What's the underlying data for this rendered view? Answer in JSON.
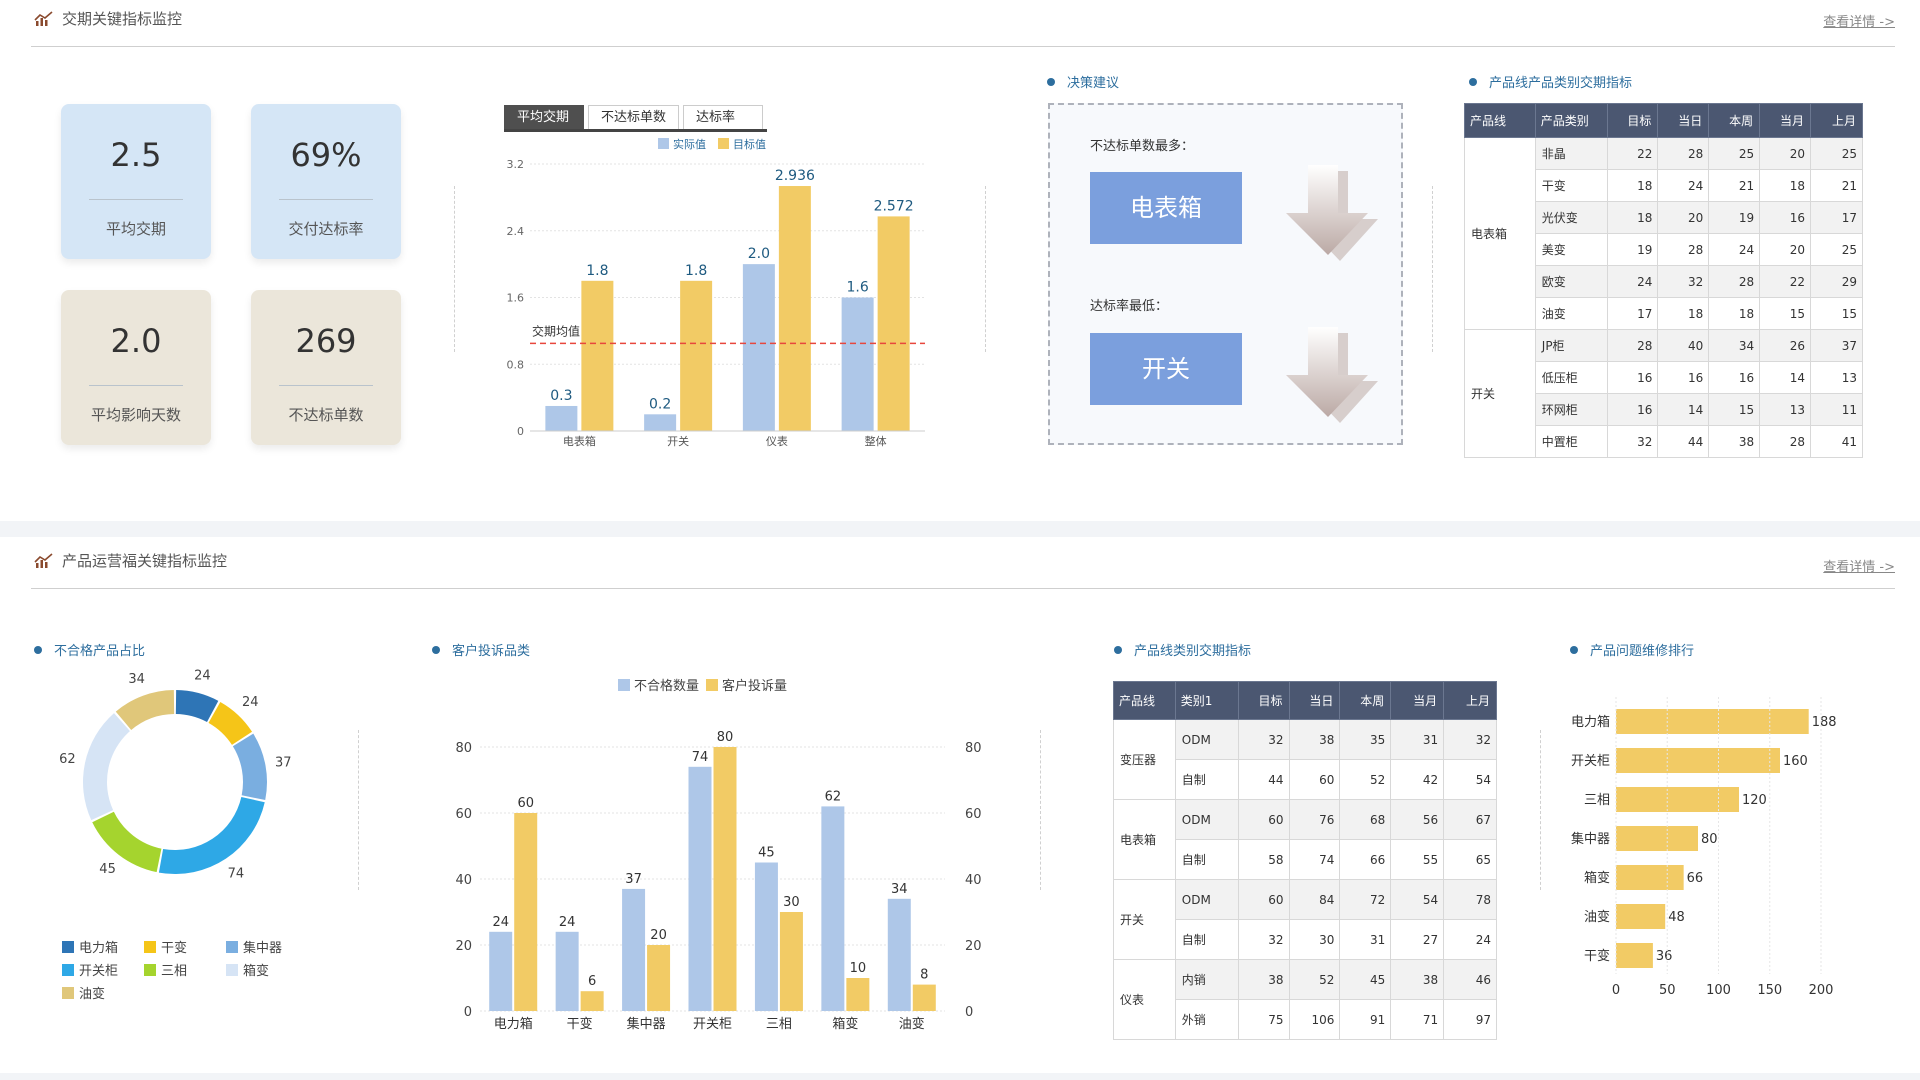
{
  "section1": {
    "title": "交期关键指标监控",
    "more": "查看详情 ->",
    "kpis": [
      {
        "value": "2.5",
        "label": "平均交期"
      },
      {
        "value": "69%",
        "label": "交付达标率"
      },
      {
        "value": "2.0",
        "label": "平均影响天数"
      },
      {
        "value": "269",
        "label": "不达标单数"
      }
    ],
    "tabs": [
      "平均交期",
      "不达标单数",
      "达标率"
    ],
    "advice": {
      "title": "决策建议",
      "q1": "不达标单数最多：",
      "a1": "电表箱",
      "q2": "达标率最低：",
      "a2": "开关"
    },
    "table": {
      "title": "产品线产品类别交期指标",
      "headers": [
        "产品线",
        "产品类别",
        "目标",
        "当日",
        "本周",
        "当月",
        "上月"
      ],
      "groups": [
        {
          "line": "电表箱",
          "rows": [
            {
              "cat": "非晶",
              "v": [
                "22",
                "28",
                "25",
                "20",
                "25"
              ]
            },
            {
              "cat": "干变",
              "v": [
                "18",
                "24",
                "21",
                "18",
                "21"
              ]
            },
            {
              "cat": "光伏变",
              "v": [
                "18",
                "20",
                "19",
                "16",
                "17"
              ]
            },
            {
              "cat": "美变",
              "v": [
                "19",
                "28",
                "24",
                "20",
                "25"
              ]
            },
            {
              "cat": "欧变",
              "v": [
                "24",
                "32",
                "28",
                "22",
                "29"
              ]
            },
            {
              "cat": "油变",
              "v": [
                "17",
                "18",
                "18",
                "15",
                "15"
              ]
            }
          ]
        },
        {
          "line": "开关",
          "rows": [
            {
              "cat": "JP柜",
              "v": [
                "28",
                "40",
                "34",
                "26",
                "37"
              ]
            },
            {
              "cat": "低压柜",
              "v": [
                "16",
                "16",
                "16",
                "14",
                "13"
              ]
            },
            {
              "cat": "环网柜",
              "v": [
                "16",
                "14",
                "15",
                "13",
                "11"
              ]
            },
            {
              "cat": "中置柜",
              "v": [
                "32",
                "44",
                "38",
                "28",
                "41"
              ]
            }
          ]
        }
      ]
    }
  },
  "section2": {
    "title": "产品运营福关键指标监控",
    "more": "查看详情 ->",
    "donut_title": "不合格产品占比",
    "complaint_title": "客户投诉品类",
    "table": {
      "title": "产品线类别交期指标",
      "headers": [
        "产品线",
        "类别1",
        "目标",
        "当日",
        "本周",
        "当月",
        "上月"
      ],
      "groups": [
        {
          "line": "变压器",
          "rows": [
            {
              "cat": "ODM",
              "v": [
                "32",
                "38",
                "35",
                "31",
                "32"
              ]
            },
            {
              "cat": "自制",
              "v": [
                "44",
                "60",
                "52",
                "42",
                "54"
              ]
            }
          ]
        },
        {
          "line": "电表箱",
          "rows": [
            {
              "cat": "ODM",
              "v": [
                "60",
                "76",
                "68",
                "56",
                "67"
              ]
            },
            {
              "cat": "自制",
              "v": [
                "58",
                "74",
                "66",
                "55",
                "65"
              ]
            }
          ]
        },
        {
          "line": "开关",
          "rows": [
            {
              "cat": "ODM",
              "v": [
                "60",
                "84",
                "72",
                "54",
                "78"
              ]
            },
            {
              "cat": "自制",
              "v": [
                "32",
                "30",
                "31",
                "27",
                "24"
              ]
            }
          ]
        },
        {
          "line": "仪表",
          "rows": [
            {
              "cat": "内销",
              "v": [
                "38",
                "52",
                "45",
                "38",
                "46"
              ]
            },
            {
              "cat": "外销",
              "v": [
                "75",
                "106",
                "91",
                "71",
                "97"
              ]
            }
          ]
        }
      ]
    },
    "ranking_title": "产品问题维修排行"
  },
  "chart_data": [
    {
      "type": "bar",
      "categories": [
        "电表箱",
        "开关",
        "仪表",
        "整体"
      ],
      "series": [
        {
          "name": "实际值",
          "values": [
            0.3,
            0.2,
            2.0,
            1.6
          ],
          "labels": [
            "0.3",
            "0.2",
            "2.0",
            "1.6"
          ],
          "color": "#aec7e8"
        },
        {
          "name": "目标值",
          "values": [
            1.8,
            1.8,
            2.936,
            2.572
          ],
          "labels": [
            "1.8",
            "1.8",
            "2.936",
            "2.572"
          ],
          "color": "#f2cb65"
        }
      ],
      "yticks": [
        "0",
        "0.8",
        "1.6",
        "2.4",
        "3.2"
      ],
      "ylim": [
        0,
        3.2
      ],
      "reference_line": {
        "label": "交期均值",
        "value": 1.05,
        "color": "#e8473d"
      },
      "legend_position": "top"
    },
    {
      "type": "pie",
      "labels": [
        "电力箱",
        "干变",
        "集中器",
        "开关柜",
        "三相",
        "箱变",
        "油变"
      ],
      "values": [
        24,
        24,
        37,
        74,
        45,
        62,
        34
      ],
      "colors": [
        "#2e75b6",
        "#f5c518",
        "#7aaee0",
        "#2ea8e6",
        "#a5d42e",
        "#d6e4f5",
        "#e0c77a"
      ],
      "legend_position": "bottom"
    },
    {
      "type": "bar",
      "categories": [
        "电力箱",
        "干变",
        "集中器",
        "开关柜",
        "三相",
        "箱变",
        "油变"
      ],
      "series": [
        {
          "name": "不合格数量",
          "values": [
            24,
            24,
            37,
            74,
            45,
            62,
            34
          ],
          "color": "#aec7e8"
        },
        {
          "name": "客户投诉量",
          "values": [
            60,
            6,
            20,
            80,
            30,
            10,
            8
          ],
          "color": "#f2cb65"
        }
      ],
      "yticks": [
        "0",
        "20",
        "40",
        "60",
        "80"
      ],
      "ylim": [
        0,
        80
      ],
      "legend_position": "top"
    },
    {
      "type": "bar",
      "orientation": "horizontal",
      "categories": [
        "电力箱",
        "开关柜",
        "三相",
        "集中器",
        "箱变",
        "油变",
        "干变"
      ],
      "values": [
        188,
        160,
        120,
        80,
        66,
        48,
        36
      ],
      "xticks": [
        "0",
        "50",
        "100",
        "150",
        "200"
      ],
      "xlim": [
        0,
        200
      ],
      "color": "#f2cb65"
    }
  ]
}
